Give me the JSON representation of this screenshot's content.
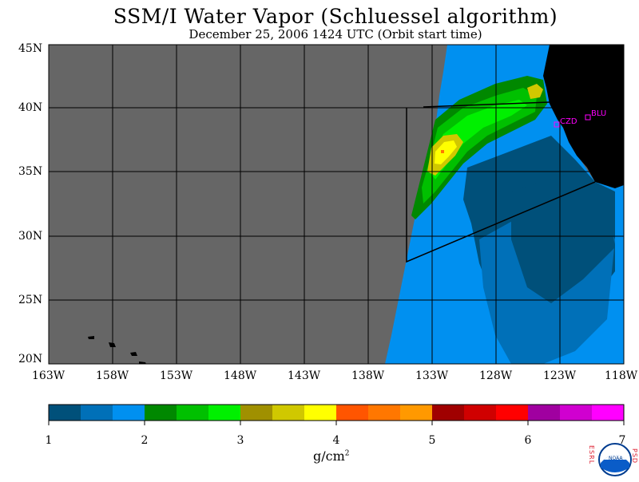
{
  "title": "SSM/I Water Vapor (Schluessel algorithm)",
  "subtitle": "December 25, 2006  1424 UTC  (Orbit start time)",
  "map": {
    "latitude_labels": [
      "45N",
      "40N",
      "35N",
      "30N",
      "25N",
      "20N"
    ],
    "longitude_labels": [
      "163W",
      "158W",
      "153W",
      "148W",
      "143W",
      "138W",
      "133W",
      "128W",
      "123W",
      "118W"
    ],
    "stations": [
      {
        "id": "CZD",
        "label": "CZD"
      },
      {
        "id": "BLU",
        "label": "BLU"
      }
    ],
    "colors": {
      "no_data": "#666666",
      "land": "#000000",
      "station": "#ff00ff"
    }
  },
  "colorbar": {
    "colors": [
      "#00507a",
      "#0070b8",
      "#0090f0",
      "#008800",
      "#00c000",
      "#00f000",
      "#a09000",
      "#d0c800",
      "#ffff00",
      "#ff5500",
      "#ff7700",
      "#ff9900",
      "#a00000",
      "#d00000",
      "#ff0000",
      "#a000a0",
      "#d000d0",
      "#ff00ff"
    ],
    "tick_labels": [
      "1",
      "2",
      "3",
      "4",
      "5",
      "6",
      "7"
    ],
    "units": "g/cm",
    "units_superscript": "2"
  },
  "logo": {
    "center_text": "NOAA",
    "left_text": "ESRL",
    "right_text": "PSD"
  }
}
